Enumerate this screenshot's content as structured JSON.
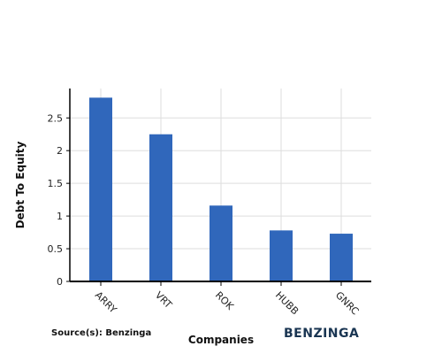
{
  "chart_data": {
    "type": "bar",
    "categories": [
      "ARRY",
      "VRT",
      "ROK",
      "HUBB",
      "GNRC"
    ],
    "values": [
      2.81,
      2.25,
      1.16,
      0.78,
      0.73
    ],
    "xlabel": "Companies",
    "ylabel": "Debt To Equity",
    "ylim": [
      0,
      2.95
    ],
    "yticks": [
      0,
      0.5,
      1,
      1.5,
      2,
      2.5
    ],
    "ytick_labels": [
      "0",
      "0.5",
      "1",
      "1.5",
      "2",
      "2.5"
    ],
    "grid": true,
    "bar_color": "#3067bb"
  },
  "footer": {
    "source": "Source(s): Benzinga",
    "brand": "BENZINGA"
  }
}
